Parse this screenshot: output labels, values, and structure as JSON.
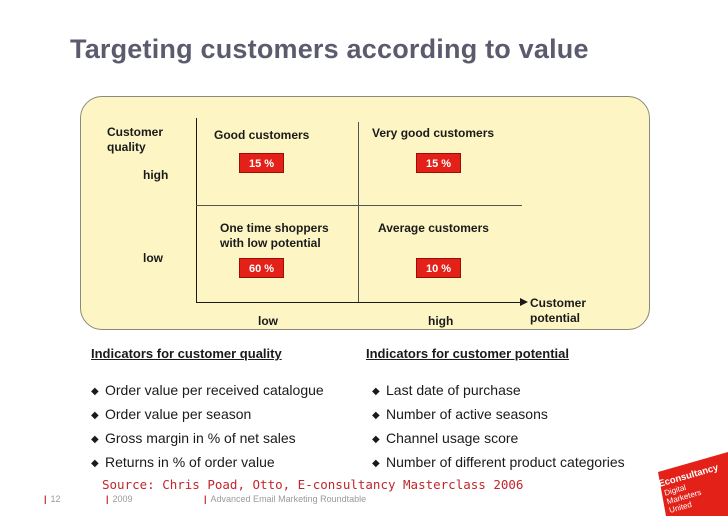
{
  "title": "Targeting customers according to value",
  "matrix": {
    "y_axis_label_line1": "Customer",
    "y_axis_label_line2": "quality",
    "y_high": "high",
    "y_low": "low",
    "x_axis_label_line1": "Customer",
    "x_axis_label_line2": "potential",
    "x_low": "low",
    "x_high": "high",
    "quadrants": {
      "top_left": {
        "label": "Good customers",
        "value": "15 %"
      },
      "top_right": {
        "label": "Very good customers",
        "value": "15 %"
      },
      "bottom_left": {
        "label_line1": "One time shoppers",
        "label_line2": "with low potential",
        "value": "60 %"
      },
      "bottom_right": {
        "label": "Average customers",
        "value": "10 %"
      }
    }
  },
  "indicators": {
    "quality": {
      "heading": "Indicators for customer quality",
      "items": [
        "Order value per received catalogue",
        "Order value per season",
        "Gross margin in % of net sales",
        "Returns in % of order value"
      ]
    },
    "potential": {
      "heading": "Indicators for customer potential",
      "items": [
        "Last date of purchase",
        "Number of active seasons",
        "Channel usage score",
        "Number of different product categories"
      ]
    }
  },
  "source": "Source: Chris Poad, Otto, E-consultancy Masterclass 2006",
  "footer": {
    "page": "12",
    "year": "2009",
    "event": "Advanced Email Marketing Roundtable"
  },
  "logo": {
    "line1": "Econsultancy",
    "line2": "Digital",
    "line3": "Marketers",
    "line4": "United",
    "color": "#e32119"
  },
  "colors": {
    "accent": "#e32119",
    "panel": "#fdf6c4",
    "title": "#5b5b6e"
  }
}
